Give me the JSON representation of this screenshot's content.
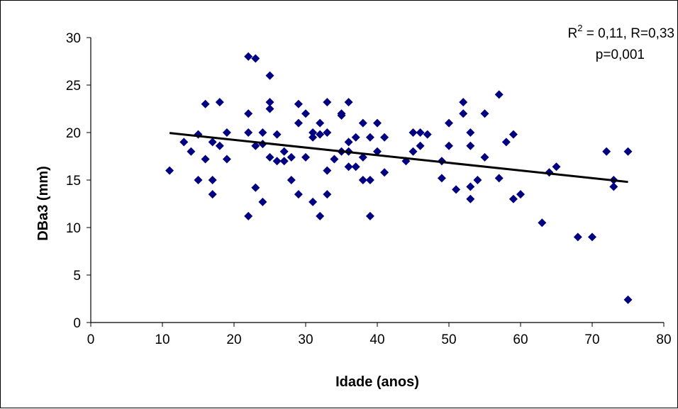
{
  "chart_data": {
    "type": "scatter",
    "xlabel": "Idade (anos)",
    "ylabel": "DBa3 (mm)",
    "xlim": [
      0,
      80
    ],
    "ylim": [
      0,
      30
    ],
    "x_ticks": [
      0,
      10,
      20,
      30,
      40,
      50,
      60,
      70,
      80
    ],
    "y_ticks": [
      0,
      5,
      10,
      15,
      20,
      25,
      30
    ],
    "grid": false,
    "legend": "none",
    "marker": "diamond",
    "marker_color": "#000080",
    "annotation": {
      "r2_prefix": "R",
      "r2_sup": "2",
      "r2_rest": " = 0,11, R=0,33",
      "p": "p=0,001"
    },
    "trendline": {
      "x": [
        11,
        75
      ],
      "y": [
        19.95,
        14.8
      ],
      "color": "#000000"
    },
    "points": [
      [
        11,
        16
      ],
      [
        13,
        19
      ],
      [
        14,
        18
      ],
      [
        15,
        15
      ],
      [
        15,
        19.8
      ],
      [
        16,
        23
      ],
      [
        16,
        17.2
      ],
      [
        17,
        19
      ],
      [
        17,
        15
      ],
      [
        17,
        13.5
      ],
      [
        18,
        23.2
      ],
      [
        18,
        18.6
      ],
      [
        19,
        20
      ],
      [
        19,
        17.2
      ],
      [
        22,
        28
      ],
      [
        22,
        22
      ],
      [
        22,
        20
      ],
      [
        22,
        11.2
      ],
      [
        23,
        27.8
      ],
      [
        23,
        18.6
      ],
      [
        23,
        14.2
      ],
      [
        24,
        20
      ],
      [
        24,
        18.8
      ],
      [
        24,
        12.7
      ],
      [
        25,
        26
      ],
      [
        25,
        23.2
      ],
      [
        25,
        22.5
      ],
      [
        25,
        17.4
      ],
      [
        26,
        19.8
      ],
      [
        26,
        17
      ],
      [
        27,
        18
      ],
      [
        27,
        17
      ],
      [
        28,
        17.4
      ],
      [
        28,
        15
      ],
      [
        29,
        23
      ],
      [
        29,
        21
      ],
      [
        29,
        13.5
      ],
      [
        30,
        22
      ],
      [
        30,
        17.4
      ],
      [
        31,
        20
      ],
      [
        31,
        19.5
      ],
      [
        31,
        12.7
      ],
      [
        32,
        21
      ],
      [
        32,
        19.8
      ],
      [
        32,
        11.2
      ],
      [
        33,
        23.2
      ],
      [
        33,
        20
      ],
      [
        33,
        16
      ],
      [
        33,
        13.5
      ],
      [
        34,
        17.2
      ],
      [
        35,
        22
      ],
      [
        35,
        21.8
      ],
      [
        35,
        18
      ],
      [
        36,
        23.2
      ],
      [
        36,
        19
      ],
      [
        36,
        18
      ],
      [
        36,
        16.4
      ],
      [
        37,
        19.5
      ],
      [
        37,
        16.4
      ],
      [
        38,
        21
      ],
      [
        38,
        17.4
      ],
      [
        38,
        15
      ],
      [
        39,
        19.5
      ],
      [
        39,
        15
      ],
      [
        39,
        11.2
      ],
      [
        40,
        21
      ],
      [
        40,
        18
      ],
      [
        41,
        19.5
      ],
      [
        41,
        15.8
      ],
      [
        44,
        17
      ],
      [
        45,
        20
      ],
      [
        45,
        18
      ],
      [
        46,
        20
      ],
      [
        46,
        18.6
      ],
      [
        47,
        19.8
      ],
      [
        49,
        17
      ],
      [
        49,
        15.2
      ],
      [
        50,
        21
      ],
      [
        50,
        18.6
      ],
      [
        51,
        14
      ],
      [
        52,
        23.2
      ],
      [
        52,
        22
      ],
      [
        53,
        20
      ],
      [
        53,
        18.6
      ],
      [
        53,
        14.3
      ],
      [
        53,
        13
      ],
      [
        54,
        15
      ],
      [
        55,
        22
      ],
      [
        55,
        17.4
      ],
      [
        57,
        24
      ],
      [
        57,
        15.2
      ],
      [
        58,
        19
      ],
      [
        59,
        19.8
      ],
      [
        59,
        13
      ],
      [
        60,
        13.5
      ],
      [
        63,
        10.5
      ],
      [
        64,
        15.8
      ],
      [
        65,
        16.4
      ],
      [
        68,
        9
      ],
      [
        70,
        9
      ],
      [
        72,
        18
      ],
      [
        73,
        15
      ],
      [
        73,
        14.3
      ],
      [
        75,
        18
      ],
      [
        75,
        2.4
      ]
    ]
  }
}
